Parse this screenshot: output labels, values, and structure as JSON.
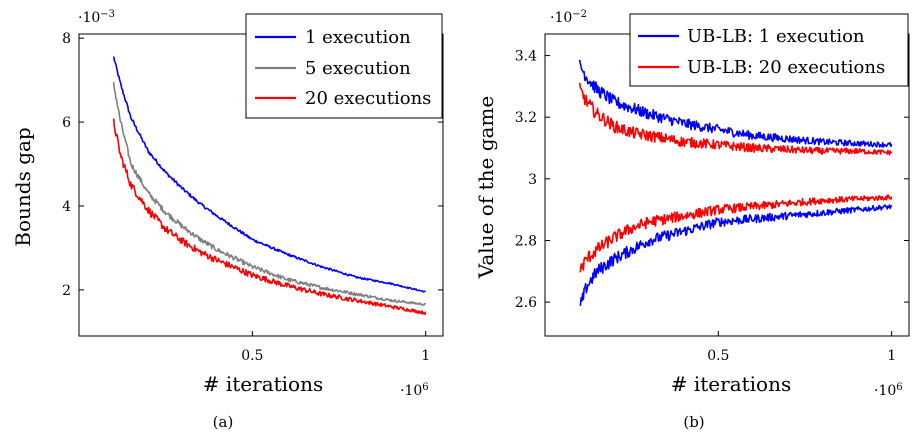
{
  "chart_data": [
    {
      "type": "line",
      "caption": "(a)",
      "xlabel": "# iterations",
      "ylabel": "Bounds gap",
      "x_multiplier": "·10^6",
      "y_multiplier": "·10^-3",
      "xlim": [
        0.0,
        1.05
      ],
      "ylim": [
        0.9,
        8.1
      ],
      "xticks": [
        0.5,
        1
      ],
      "xtick_labels": [
        "0.5",
        "1"
      ],
      "yticks": [
        2,
        4,
        6,
        8
      ],
      "ytick_labels": [
        "2",
        "4",
        "6",
        "8"
      ],
      "grid": false,
      "legend_position": "top-right",
      "series": [
        {
          "name": "1 execution",
          "color": "#0000ff",
          "x": [
            0.1,
            0.12,
            0.15,
            0.2,
            0.25,
            0.3,
            0.35,
            0.4,
            0.5,
            0.6,
            0.7,
            0.8,
            0.9,
            1.0
          ],
          "values": [
            7.55,
            6.9,
            6.1,
            5.3,
            4.8,
            4.4,
            4.05,
            3.75,
            3.2,
            2.85,
            2.55,
            2.3,
            2.15,
            1.95
          ]
        },
        {
          "name": "5 execution",
          "color": "#808080",
          "x": [
            0.1,
            0.12,
            0.15,
            0.2,
            0.25,
            0.3,
            0.35,
            0.4,
            0.5,
            0.6,
            0.7,
            0.8,
            0.9,
            1.0
          ],
          "values": [
            6.9,
            6.0,
            5.0,
            4.3,
            3.85,
            3.5,
            3.2,
            2.95,
            2.55,
            2.25,
            2.05,
            1.9,
            1.75,
            1.65
          ]
        },
        {
          "name": "20 executions",
          "color": "#ff0000",
          "x": [
            0.1,
            0.12,
            0.15,
            0.2,
            0.25,
            0.3,
            0.35,
            0.4,
            0.5,
            0.6,
            0.7,
            0.8,
            0.9,
            1.0
          ],
          "values": [
            6.0,
            5.2,
            4.5,
            3.9,
            3.45,
            3.15,
            2.9,
            2.7,
            2.35,
            2.1,
            1.9,
            1.75,
            1.6,
            1.45
          ]
        }
      ]
    },
    {
      "type": "line",
      "caption": "(b)",
      "xlabel": "# iterations",
      "ylabel": "Value of the game",
      "x_multiplier": "·10^6",
      "y_multiplier": "·10^-2",
      "xlim": [
        0.0,
        1.05
      ],
      "ylim": [
        2.49,
        3.47
      ],
      "xticks": [
        0.5,
        1
      ],
      "xtick_labels": [
        "0.5",
        "1"
      ],
      "yticks": [
        2.6,
        2.8,
        3.0,
        3.2,
        3.4
      ],
      "ytick_labels": [
        "2.6",
        "2.8",
        "3",
        "3.2",
        "3.4"
      ],
      "grid": false,
      "legend_position": "top-right",
      "series": [
        {
          "name": "UB-LB: 1 execution",
          "color": "#0000ff",
          "bounds": [
            {
              "x": [
                0.1,
                0.12,
                0.15,
                0.2,
                0.25,
                0.3,
                0.4,
                0.5,
                0.6,
                0.7,
                0.8,
                0.9,
                1.0
              ],
              "values": [
                3.37,
                3.33,
                3.29,
                3.25,
                3.23,
                3.21,
                3.18,
                3.16,
                3.14,
                3.13,
                3.12,
                3.115,
                3.11
              ]
            },
            {
              "x": [
                0.1,
                0.12,
                0.15,
                0.2,
                0.25,
                0.3,
                0.4,
                0.5,
                0.6,
                0.7,
                0.8,
                0.9,
                1.0
              ],
              "values": [
                2.58,
                2.65,
                2.7,
                2.74,
                2.77,
                2.8,
                2.83,
                2.86,
                2.87,
                2.88,
                2.89,
                2.9,
                2.91
              ]
            }
          ]
        },
        {
          "name": "UB-LB: 20 executions",
          "color": "#ff0000",
          "bounds": [
            {
              "x": [
                0.1,
                0.12,
                0.15,
                0.2,
                0.25,
                0.3,
                0.4,
                0.5,
                0.6,
                0.7,
                0.8,
                0.9,
                1.0
              ],
              "values": [
                3.29,
                3.25,
                3.21,
                3.17,
                3.15,
                3.14,
                3.12,
                3.11,
                3.1,
                3.095,
                3.09,
                3.09,
                3.085
              ]
            },
            {
              "x": [
                0.1,
                0.12,
                0.15,
                0.2,
                0.25,
                0.3,
                0.4,
                0.5,
                0.6,
                0.7,
                0.8,
                0.9,
                1.0
              ],
              "values": [
                2.7,
                2.74,
                2.77,
                2.81,
                2.84,
                2.86,
                2.88,
                2.9,
                2.91,
                2.92,
                2.93,
                2.935,
                2.94
              ]
            }
          ]
        }
      ]
    }
  ]
}
